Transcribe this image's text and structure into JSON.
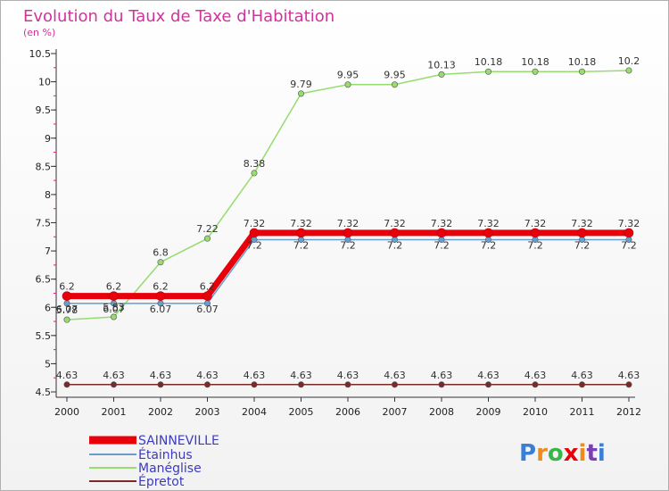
{
  "chart_data": {
    "type": "line",
    "title": "Evolution du Taux de Taxe d'Habitation",
    "subtitle": "(en %)",
    "categories": [
      "2000",
      "2001",
      "2002",
      "2003",
      "2004",
      "2005",
      "2006",
      "2007",
      "2008",
      "2009",
      "2010",
      "2011",
      "2012"
    ],
    "yticks": [
      "4.5",
      "5",
      "5.5",
      "6",
      "6.5",
      "7",
      "7.5",
      "8",
      "8.5",
      "9",
      "9.5",
      "10",
      "10.5"
    ],
    "ylim": [
      4.5,
      10.5
    ],
    "series": [
      {
        "name": "SAINNEVILLE",
        "color": "#e8000b",
        "values": [
          6.2,
          6.2,
          6.2,
          6.2,
          7.32,
          7.32,
          7.32,
          7.32,
          7.32,
          7.32,
          7.32,
          7.32,
          7.32
        ],
        "labels": [
          "6.2",
          "6.2",
          "6.2",
          "6.2",
          "7.32",
          "7.32",
          "7.32",
          "7.32",
          "7.32",
          "7.32",
          "7.32",
          "7.32",
          "7.32"
        ]
      },
      {
        "name": "Étainhus",
        "color": "#6a9ccc",
        "values": [
          6.07,
          6.07,
          6.07,
          6.07,
          7.2,
          7.2,
          7.2,
          7.2,
          7.2,
          7.2,
          7.2,
          7.2,
          7.2
        ],
        "labels": [
          "6.07",
          "6.07",
          "6.07",
          "6.07",
          "7.2",
          "7.2",
          "7.2",
          "7.2",
          "7.2",
          "7.2",
          "7.2",
          "7.2",
          "7.2"
        ]
      },
      {
        "name": "Manéglise",
        "color": "#96dc6e",
        "values": [
          5.78,
          5.83,
          6.8,
          7.22,
          8.38,
          9.79,
          9.95,
          9.95,
          10.13,
          10.18,
          10.18,
          10.18,
          10.2
        ],
        "labels": [
          "5.78",
          "5.83",
          "6.8",
          "7.22",
          "8.38",
          "9.79",
          "9.95",
          "9.95",
          "10.13",
          "10.18",
          "10.18",
          "10.18",
          "10.2"
        ]
      },
      {
        "name": "Épretot",
        "color": "#7a2a2a",
        "values": [
          4.63,
          4.63,
          4.63,
          4.63,
          4.63,
          4.63,
          4.63,
          4.63,
          4.63,
          4.63,
          4.63,
          4.63,
          4.63
        ],
        "labels": [
          "4.63",
          "4.63",
          "4.63",
          "4.63",
          "4.63",
          "4.63",
          "4.63",
          "4.63",
          "4.63",
          "4.63",
          "4.63",
          "4.63",
          "4.63"
        ]
      }
    ]
  },
  "logo": {
    "text": "Proxiti",
    "colors": [
      "#3a7fd5",
      "#f08a1c",
      "#3ab54a",
      "#e8000b",
      "#f08a1c",
      "#7a3fb0",
      "#3a7fd5"
    ]
  }
}
